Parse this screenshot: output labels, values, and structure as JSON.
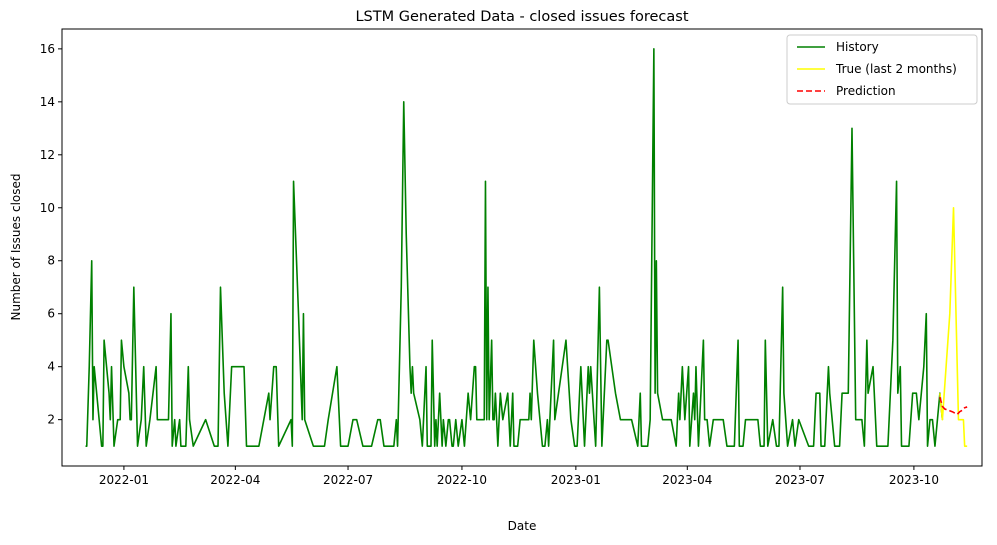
{
  "chart_data": {
    "type": "line",
    "title": "LSTM Generated Data - closed issues forecast",
    "xlabel": "Date",
    "ylabel": "Number of Issues closed",
    "x_axis_kind": "date",
    "xlim": [
      "2021-11-12",
      "2023-11-25"
    ],
    "ylim": [
      0.25,
      16.75
    ],
    "x_ticks": [
      "2022-01-01",
      "2022-04-01",
      "2022-07-01",
      "2022-10-01",
      "2023-01-01",
      "2023-04-01",
      "2023-07-01",
      "2023-10-01"
    ],
    "x_tick_labels": [
      "2022-01",
      "2022-04",
      "2022-07",
      "2022-10",
      "2023-01",
      "2023-04",
      "2023-07",
      "2023-10"
    ],
    "y_ticks": [
      2,
      4,
      6,
      8,
      10,
      12,
      14,
      16
    ],
    "grid": false,
    "legend_position": "top-right",
    "series": [
      {
        "name": "History",
        "color": "#008000",
        "dash": "solid",
        "points": [
          [
            "2021-12-01",
            1
          ],
          [
            "2021-12-02",
            1
          ],
          [
            "2021-12-04",
            4
          ],
          [
            "2021-12-06",
            8
          ],
          [
            "2021-12-07",
            2
          ],
          [
            "2021-12-08",
            4
          ],
          [
            "2021-12-10",
            3
          ],
          [
            "2021-12-14",
            1
          ],
          [
            "2021-12-15",
            1
          ],
          [
            "2021-12-16",
            5
          ],
          [
            "2021-12-18",
            4
          ],
          [
            "2021-12-20",
            3
          ],
          [
            "2021-12-21",
            2
          ],
          [
            "2021-12-22",
            4
          ],
          [
            "2021-12-24",
            1
          ],
          [
            "2021-12-27",
            2
          ],
          [
            "2021-12-29",
            2
          ],
          [
            "2021-12-30",
            5
          ],
          [
            "2022-01-01",
            4
          ],
          [
            "2022-01-05",
            3
          ],
          [
            "2022-01-06",
            2
          ],
          [
            "2022-01-07",
            2
          ],
          [
            "2022-01-09",
            7
          ],
          [
            "2022-01-12",
            1
          ],
          [
            "2022-01-15",
            2
          ],
          [
            "2022-01-17",
            4
          ],
          [
            "2022-01-19",
            1
          ],
          [
            "2022-01-22",
            2
          ],
          [
            "2022-01-27",
            4
          ],
          [
            "2022-01-28",
            2
          ],
          [
            "2022-01-31",
            2
          ],
          [
            "2022-02-06",
            2
          ],
          [
            "2022-02-08",
            6
          ],
          [
            "2022-02-09",
            1
          ],
          [
            "2022-02-11",
            2
          ],
          [
            "2022-02-12",
            1
          ],
          [
            "2022-02-15",
            2
          ],
          [
            "2022-02-16",
            1
          ],
          [
            "2022-02-20",
            1
          ],
          [
            "2022-02-22",
            4
          ],
          [
            "2022-02-23",
            2
          ],
          [
            "2022-02-26",
            1
          ],
          [
            "2022-03-08",
            2
          ],
          [
            "2022-03-15",
            1
          ],
          [
            "2022-03-18",
            1
          ],
          [
            "2022-03-20",
            7
          ],
          [
            "2022-03-23",
            3
          ],
          [
            "2022-03-26",
            1
          ],
          [
            "2022-03-29",
            4
          ],
          [
            "2022-04-08",
            4
          ],
          [
            "2022-04-10",
            1
          ],
          [
            "2022-04-20",
            1
          ],
          [
            "2022-04-28",
            3
          ],
          [
            "2022-04-29",
            2
          ],
          [
            "2022-05-02",
            4
          ],
          [
            "2022-05-04",
            4
          ],
          [
            "2022-05-06",
            1
          ],
          [
            "2022-05-16",
            2
          ],
          [
            "2022-05-17",
            1
          ],
          [
            "2022-05-18",
            11
          ],
          [
            "2022-05-22",
            6
          ],
          [
            "2022-05-25",
            2
          ],
          [
            "2022-05-26",
            6
          ],
          [
            "2022-05-27",
            2
          ],
          [
            "2022-06-03",
            1
          ],
          [
            "2022-06-07",
            1
          ],
          [
            "2022-06-12",
            1
          ],
          [
            "2022-06-15",
            2
          ],
          [
            "2022-06-22",
            4
          ],
          [
            "2022-06-25",
            1
          ],
          [
            "2022-07-01",
            1
          ],
          [
            "2022-07-05",
            2
          ],
          [
            "2022-07-08",
            2
          ],
          [
            "2022-07-13",
            1
          ],
          [
            "2022-07-17",
            1
          ],
          [
            "2022-07-20",
            1
          ],
          [
            "2022-07-25",
            2
          ],
          [
            "2022-07-27",
            2
          ],
          [
            "2022-07-30",
            1
          ],
          [
            "2022-08-06",
            1
          ],
          [
            "2022-08-07",
            1
          ],
          [
            "2022-08-09",
            2
          ],
          [
            "2022-08-10",
            1
          ],
          [
            "2022-08-13",
            7
          ],
          [
            "2022-08-15",
            14
          ],
          [
            "2022-08-17",
            9
          ],
          [
            "2022-08-20",
            4
          ],
          [
            "2022-08-21",
            3
          ],
          [
            "2022-08-22",
            4
          ],
          [
            "2022-08-23",
            3
          ],
          [
            "2022-08-28",
            2
          ],
          [
            "2022-08-30",
            1
          ],
          [
            "2022-09-02",
            4
          ],
          [
            "2022-09-03",
            1
          ],
          [
            "2022-09-06",
            1
          ],
          [
            "2022-09-07",
            5
          ],
          [
            "2022-09-09",
            1
          ],
          [
            "2022-09-10",
            2
          ],
          [
            "2022-09-11",
            1
          ],
          [
            "2022-09-13",
            3
          ],
          [
            "2022-09-15",
            1
          ],
          [
            "2022-09-16",
            2
          ],
          [
            "2022-09-18",
            1
          ],
          [
            "2022-09-20",
            2
          ],
          [
            "2022-09-21",
            2
          ],
          [
            "2022-09-23",
            1
          ],
          [
            "2022-09-24",
            1
          ],
          [
            "2022-09-26",
            2
          ],
          [
            "2022-09-28",
            1
          ],
          [
            "2022-10-01",
            2
          ],
          [
            "2022-10-03",
            1
          ],
          [
            "2022-10-06",
            3
          ],
          [
            "2022-10-08",
            2
          ],
          [
            "2022-10-11",
            4
          ],
          [
            "2022-10-12",
            4
          ],
          [
            "2022-10-13",
            2
          ],
          [
            "2022-10-19",
            2
          ],
          [
            "2022-10-20",
            11
          ],
          [
            "2022-10-21",
            2
          ],
          [
            "2022-10-22",
            7
          ],
          [
            "2022-10-23",
            2
          ],
          [
            "2022-10-25",
            5
          ],
          [
            "2022-10-26",
            2
          ],
          [
            "2022-10-27",
            2
          ],
          [
            "2022-10-28",
            3
          ],
          [
            "2022-10-29",
            2
          ],
          [
            "2022-10-30",
            1
          ],
          [
            "2022-11-01",
            3
          ],
          [
            "2022-11-03",
            2
          ],
          [
            "2022-11-07",
            3
          ],
          [
            "2022-11-09",
            1
          ],
          [
            "2022-11-11",
            3
          ],
          [
            "2022-11-12",
            1
          ],
          [
            "2022-11-15",
            1
          ],
          [
            "2022-11-17",
            2
          ],
          [
            "2022-11-20",
            2
          ],
          [
            "2022-11-22",
            2
          ],
          [
            "2022-11-24",
            2
          ],
          [
            "2022-11-25",
            3
          ],
          [
            "2022-11-26",
            2
          ],
          [
            "2022-11-28",
            5
          ],
          [
            "2022-12-01",
            3
          ],
          [
            "2022-12-05",
            1
          ],
          [
            "2022-12-07",
            1
          ],
          [
            "2022-12-09",
            2
          ],
          [
            "2022-12-10",
            1
          ],
          [
            "2022-12-14",
            5
          ],
          [
            "2022-12-15",
            2
          ],
          [
            "2022-12-18",
            3
          ],
          [
            "2022-12-24",
            5
          ],
          [
            "2022-12-28",
            2
          ],
          [
            "2022-12-31",
            1
          ],
          [
            "2023-01-02",
            1
          ],
          [
            "2023-01-05",
            4
          ],
          [
            "2023-01-08",
            1
          ],
          [
            "2023-01-11",
            4
          ],
          [
            "2023-01-12",
            3
          ],
          [
            "2023-01-13",
            4
          ],
          [
            "2023-01-17",
            1
          ],
          [
            "2023-01-20",
            7
          ],
          [
            "2023-01-22",
            1
          ],
          [
            "2023-01-24",
            3
          ],
          [
            "2023-01-26",
            5
          ],
          [
            "2023-01-27",
            5
          ],
          [
            "2023-02-02",
            3
          ],
          [
            "2023-02-06",
            2
          ],
          [
            "2023-02-09",
            2
          ],
          [
            "2023-02-12",
            2
          ],
          [
            "2023-02-15",
            2
          ],
          [
            "2023-02-20",
            1
          ],
          [
            "2023-02-22",
            3
          ],
          [
            "2023-02-23",
            1
          ],
          [
            "2023-02-28",
            1
          ],
          [
            "2023-03-02",
            2
          ],
          [
            "2023-03-05",
            16
          ],
          [
            "2023-03-06",
            3
          ],
          [
            "2023-03-07",
            8
          ],
          [
            "2023-03-08",
            3
          ],
          [
            "2023-03-12",
            2
          ],
          [
            "2023-03-15",
            2
          ],
          [
            "2023-03-19",
            2
          ],
          [
            "2023-03-23",
            1
          ],
          [
            "2023-03-25",
            3
          ],
          [
            "2023-03-26",
            2
          ],
          [
            "2023-03-28",
            4
          ],
          [
            "2023-03-30",
            2
          ],
          [
            "2023-04-02",
            4
          ],
          [
            "2023-04-03",
            1
          ],
          [
            "2023-04-06",
            3
          ],
          [
            "2023-04-07",
            2
          ],
          [
            "2023-04-08",
            4
          ],
          [
            "2023-04-10",
            1
          ],
          [
            "2023-04-14",
            5
          ],
          [
            "2023-04-15",
            2
          ],
          [
            "2023-04-17",
            2
          ],
          [
            "2023-04-19",
            1
          ],
          [
            "2023-04-22",
            2
          ],
          [
            "2023-04-26",
            2
          ],
          [
            "2023-04-30",
            2
          ],
          [
            "2023-05-03",
            1
          ],
          [
            "2023-05-09",
            1
          ],
          [
            "2023-05-12",
            5
          ],
          [
            "2023-05-13",
            1
          ],
          [
            "2023-05-16",
            1
          ],
          [
            "2023-05-18",
            2
          ],
          [
            "2023-05-22",
            2
          ],
          [
            "2023-05-28",
            2
          ],
          [
            "2023-05-30",
            1
          ],
          [
            "2023-06-02",
            1
          ],
          [
            "2023-06-03",
            5
          ],
          [
            "2023-06-05",
            1
          ],
          [
            "2023-06-09",
            2
          ],
          [
            "2023-06-12",
            1
          ],
          [
            "2023-06-14",
            1
          ],
          [
            "2023-06-17",
            7
          ],
          [
            "2023-06-18",
            3
          ],
          [
            "2023-06-21",
            1
          ],
          [
            "2023-06-25",
            2
          ],
          [
            "2023-06-27",
            1
          ],
          [
            "2023-06-30",
            2
          ],
          [
            "2023-07-08",
            1
          ],
          [
            "2023-07-12",
            1
          ],
          [
            "2023-07-14",
            3
          ],
          [
            "2023-07-17",
            3
          ],
          [
            "2023-07-18",
            1
          ],
          [
            "2023-07-21",
            1
          ],
          [
            "2023-07-24",
            4
          ],
          [
            "2023-07-25",
            3
          ],
          [
            "2023-07-29",
            1
          ],
          [
            "2023-08-02",
            1
          ],
          [
            "2023-08-04",
            3
          ],
          [
            "2023-08-09",
            3
          ],
          [
            "2023-08-12",
            13
          ],
          [
            "2023-08-15",
            2
          ],
          [
            "2023-08-18",
            2
          ],
          [
            "2023-08-20",
            2
          ],
          [
            "2023-08-22",
            1
          ],
          [
            "2023-08-24",
            5
          ],
          [
            "2023-08-25",
            3
          ],
          [
            "2023-08-29",
            4
          ],
          [
            "2023-09-01",
            1
          ],
          [
            "2023-09-06",
            1
          ],
          [
            "2023-09-10",
            1
          ],
          [
            "2023-09-14",
            5
          ],
          [
            "2023-09-17",
            11
          ],
          [
            "2023-09-18",
            3
          ],
          [
            "2023-09-20",
            4
          ],
          [
            "2023-09-21",
            1
          ],
          [
            "2023-09-27",
            1
          ],
          [
            "2023-09-30",
            3
          ],
          [
            "2023-10-03",
            3
          ],
          [
            "2023-10-05",
            2
          ],
          [
            "2023-10-07",
            3
          ],
          [
            "2023-10-09",
            4
          ],
          [
            "2023-10-11",
            6
          ],
          [
            "2023-10-12",
            1
          ],
          [
            "2023-10-14",
            2
          ],
          [
            "2023-10-16",
            2
          ],
          [
            "2023-10-18",
            1
          ],
          [
            "2023-10-20",
            2
          ],
          [
            "2023-10-22",
            3
          ],
          [
            "2023-10-24",
            2
          ]
        ]
      },
      {
        "name": "True (last 2 months)",
        "color": "#ffff00",
        "dash": "solid",
        "points": [
          [
            "2023-10-22",
            3
          ],
          [
            "2023-10-24",
            2
          ],
          [
            "2023-10-27",
            4
          ],
          [
            "2023-10-30",
            6
          ],
          [
            "2023-11-02",
            10
          ],
          [
            "2023-11-06",
            2
          ],
          [
            "2023-11-09",
            2
          ],
          [
            "2023-11-10",
            2
          ],
          [
            "2023-11-11",
            1
          ],
          [
            "2023-11-13",
            1
          ]
        ]
      },
      {
        "name": "Prediction",
        "color": "#ff0000",
        "dash": "dashed",
        "points": [
          [
            "2023-10-22",
            2.85
          ],
          [
            "2023-10-24",
            2.5
          ],
          [
            "2023-10-26",
            2.4
          ],
          [
            "2023-10-29",
            2.35
          ],
          [
            "2023-11-01",
            2.3
          ],
          [
            "2023-11-03",
            2.25
          ],
          [
            "2023-11-05",
            2.2
          ],
          [
            "2023-11-07",
            2.3
          ],
          [
            "2023-11-09",
            2.35
          ],
          [
            "2023-11-11",
            2.45
          ],
          [
            "2023-11-13",
            2.48
          ]
        ]
      }
    ]
  }
}
